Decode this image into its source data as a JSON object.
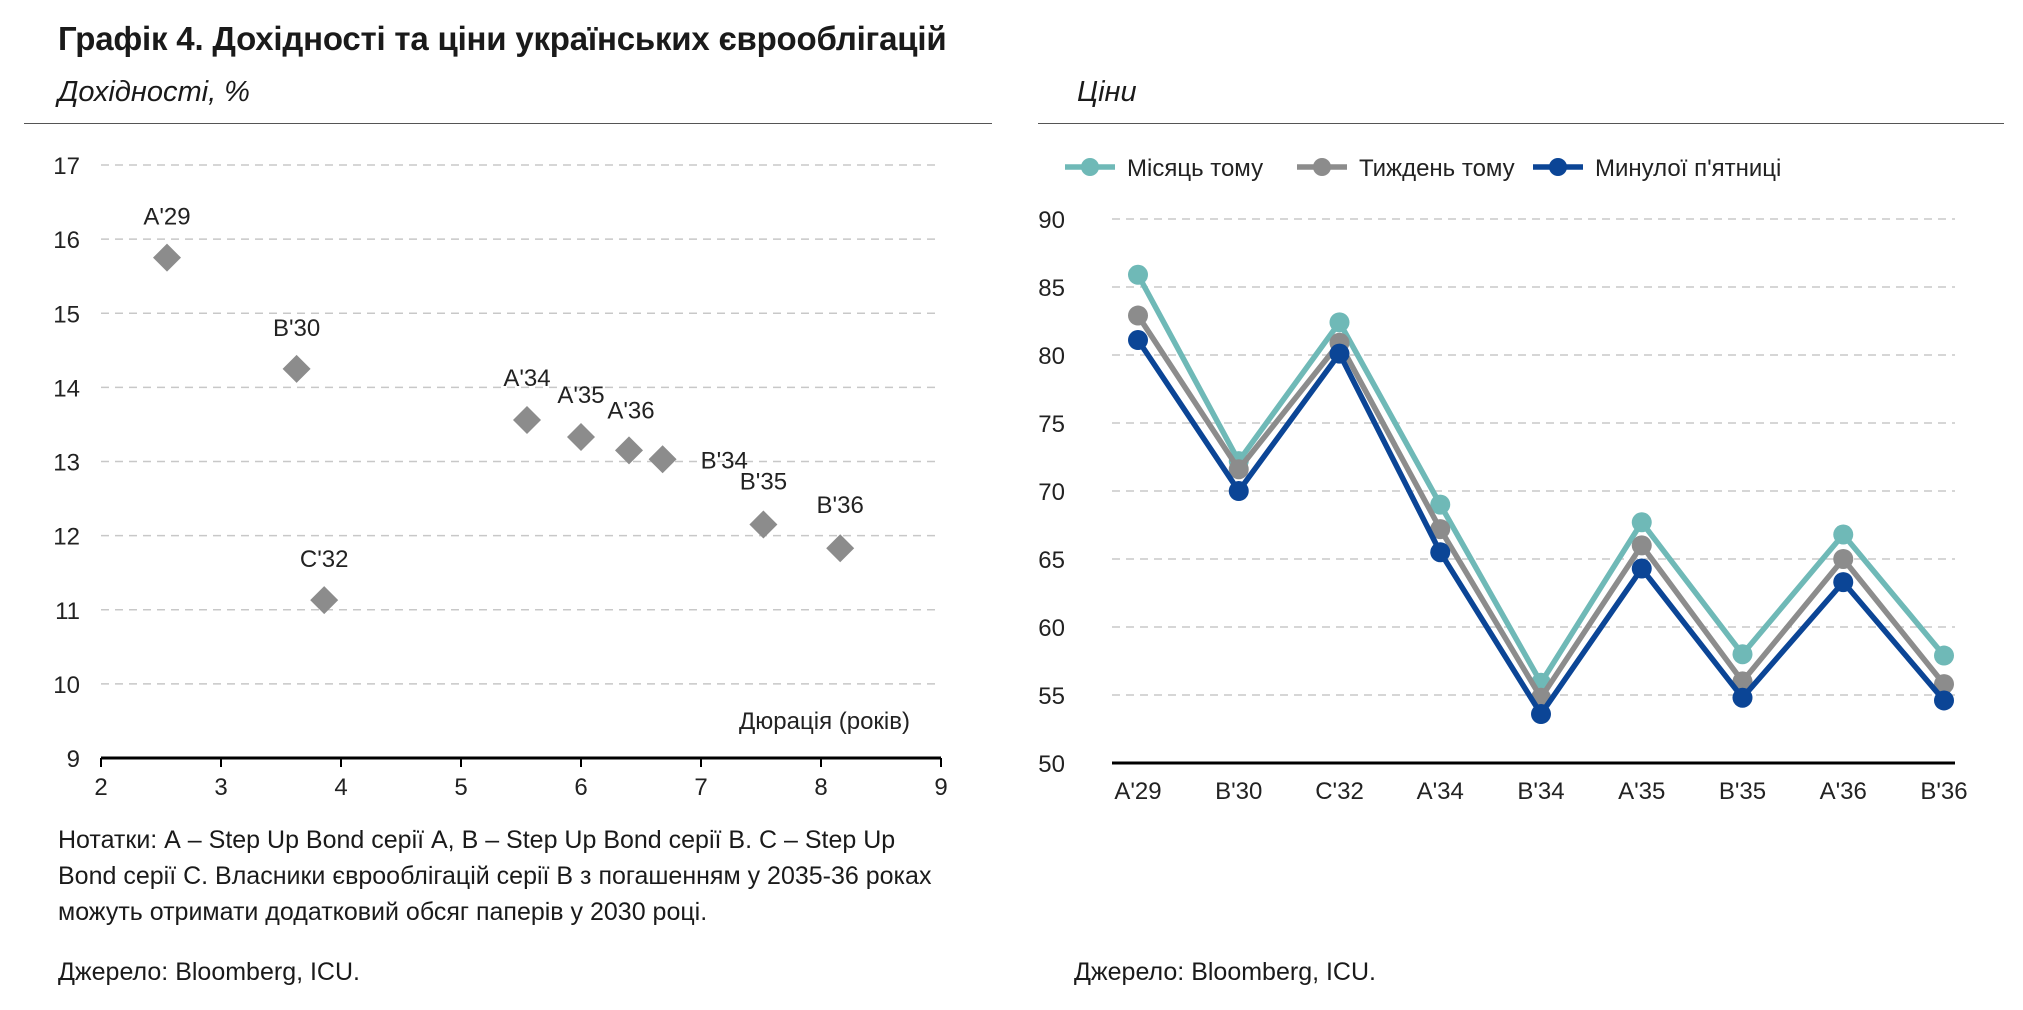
{
  "title": "Графік 4. Дохідності та ціни українських єврооблігацій",
  "left_subtitle": "Дохідності, %",
  "right_subtitle": "Ціни",
  "left_note": "Нотатки: А – Step Up Bond серії А, В – Step Up Bond серії В. С – Step Up Bond серії С. Власники єврооблігацій серії В з погашенням у 2035-36 роках можуть отримати додатковий обсяг паперів у 2030 році.",
  "left_source": "Джерело: Bloomberg, ICU.",
  "right_source": "Джерело: Bloomberg, ICU.",
  "colors": {
    "month": "#6fb9b7",
    "week": "#8c8c8c",
    "friday": "#0b4596",
    "markers": "#8c8c8c"
  },
  "chart_data": [
    {
      "type": "scatter",
      "title": "",
      "xlabel": "Дюрація (років)",
      "ylabel": "Дохідності, %",
      "xlim": [
        2,
        9
      ],
      "ylim": [
        9,
        17
      ],
      "x_ticks": [
        2,
        3,
        4,
        5,
        6,
        7,
        8,
        9
      ],
      "y_ticks": [
        9,
        10,
        11,
        12,
        13,
        14,
        15,
        16,
        17
      ],
      "grid": true,
      "points": [
        {
          "label": "А'29",
          "x": 2.55,
          "y": 15.75
        },
        {
          "label": "В'30",
          "x": 3.63,
          "y": 14.25
        },
        {
          "label": "С'32",
          "x": 3.86,
          "y": 11.13
        },
        {
          "label": "А'34",
          "x": 5.55,
          "y": 13.56
        },
        {
          "label": "А'35",
          "x": 6.0,
          "y": 13.33
        },
        {
          "label": "А'36",
          "x": 6.4,
          "y": 13.15
        },
        {
          "label": "В'34",
          "x": 6.68,
          "y": 13.03
        },
        {
          "label": "В'35",
          "x": 7.52,
          "y": 12.15
        },
        {
          "label": "В'36",
          "x": 8.16,
          "y": 11.83
        }
      ]
    },
    {
      "type": "line",
      "title": "",
      "categories": [
        "А'29",
        "В'30",
        "С'32",
        "А'34",
        "В'34",
        "А'35",
        "В'35",
        "А'36",
        "В'36"
      ],
      "ylim": [
        50,
        90
      ],
      "y_ticks": [
        50,
        55,
        60,
        65,
        70,
        75,
        80,
        85,
        90
      ],
      "grid": true,
      "legend_position": "top",
      "series": [
        {
          "name": "Місяць тому",
          "values": [
            85.9,
            72.2,
            82.4,
            69.0,
            55.9,
            67.7,
            58.0,
            66.8,
            57.9
          ]
        },
        {
          "name": "Тиждень тому",
          "values": [
            82.9,
            71.6,
            80.9,
            67.2,
            54.8,
            66.0,
            56.0,
            65.0,
            55.8
          ]
        },
        {
          "name": "Минулої п'ятниці",
          "values": [
            81.1,
            70.0,
            80.1,
            65.5,
            53.6,
            64.3,
            54.8,
            63.3,
            54.6
          ]
        }
      ]
    }
  ]
}
